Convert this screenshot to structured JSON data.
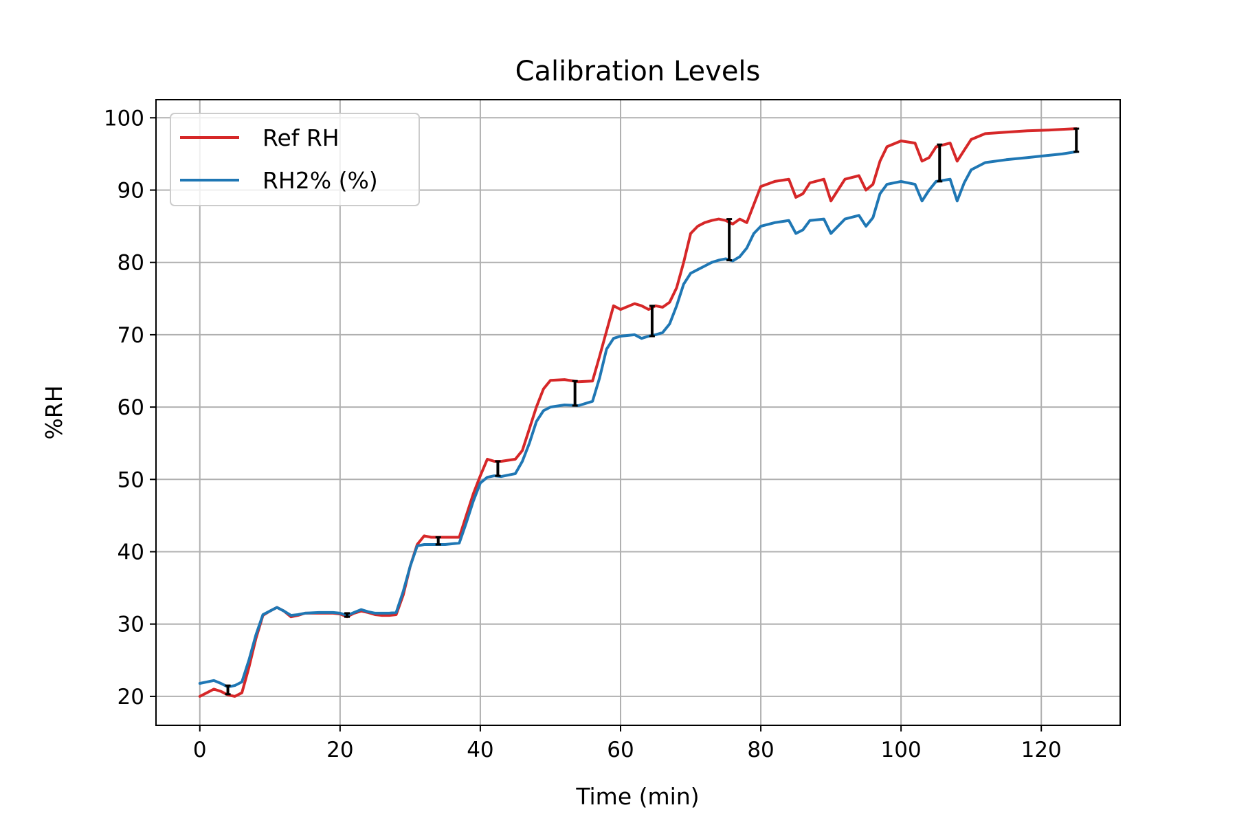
{
  "chart_data": {
    "type": "line",
    "title": "Calibration Levels",
    "xlabel": "Time (min)",
    "ylabel": "%RH",
    "xlim": [
      -6.25,
      131.25
    ],
    "ylim": [
      16,
      102.5
    ],
    "xticks": [
      0,
      20,
      40,
      60,
      80,
      100,
      120
    ],
    "yticks": [
      20,
      30,
      40,
      50,
      60,
      70,
      80,
      90,
      100
    ],
    "grid": true,
    "legend": {
      "placement": "upper-left"
    },
    "series": [
      {
        "name": "Ref RH",
        "color": "#d62728",
        "points": [
          [
            0,
            20.0
          ],
          [
            1,
            20.5
          ],
          [
            2,
            21.0
          ],
          [
            3,
            20.7
          ],
          [
            4,
            20.2
          ],
          [
            5,
            20.0
          ],
          [
            6,
            20.5
          ],
          [
            7,
            24.0
          ],
          [
            8,
            28.0
          ],
          [
            9,
            31.2
          ],
          [
            10,
            31.8
          ],
          [
            11,
            32.3
          ],
          [
            12,
            31.8
          ],
          [
            13,
            31.0
          ],
          [
            14,
            31.2
          ],
          [
            15,
            31.5
          ],
          [
            17,
            31.5
          ],
          [
            19,
            31.5
          ],
          [
            20,
            31.4
          ],
          [
            21,
            31.0
          ],
          [
            22,
            31.5
          ],
          [
            23,
            31.8
          ],
          [
            24,
            31.6
          ],
          [
            25,
            31.3
          ],
          [
            26,
            31.2
          ],
          [
            27,
            31.2
          ],
          [
            28,
            31.3
          ],
          [
            29,
            34.0
          ],
          [
            30,
            38.0
          ],
          [
            31,
            41.0
          ],
          [
            32,
            42.2
          ],
          [
            33,
            42.0
          ],
          [
            35,
            42.0
          ],
          [
            37,
            42.0
          ],
          [
            38,
            45.0
          ],
          [
            39,
            48.0
          ],
          [
            40,
            50.5
          ],
          [
            41,
            52.8
          ],
          [
            42,
            52.5
          ],
          [
            43,
            52.5
          ],
          [
            45,
            52.8
          ],
          [
            46,
            54.0
          ],
          [
            47,
            57.0
          ],
          [
            48,
            60.0
          ],
          [
            49,
            62.5
          ],
          [
            50,
            63.7
          ],
          [
            52,
            63.8
          ],
          [
            54,
            63.5
          ],
          [
            56,
            63.6
          ],
          [
            57,
            67.0
          ],
          [
            58,
            70.5
          ],
          [
            59,
            74.0
          ],
          [
            60,
            73.5
          ],
          [
            62,
            74.3
          ],
          [
            63,
            74.0
          ],
          [
            64,
            73.5
          ],
          [
            65,
            74.0
          ],
          [
            66,
            73.8
          ],
          [
            67,
            74.5
          ],
          [
            68,
            76.5
          ],
          [
            69,
            80.0
          ],
          [
            70,
            84.0
          ],
          [
            71,
            85.0
          ],
          [
            72,
            85.5
          ],
          [
            73,
            85.8
          ],
          [
            74,
            86.0
          ],
          [
            75,
            85.8
          ],
          [
            76,
            85.3
          ],
          [
            77,
            86.0
          ],
          [
            78,
            85.5
          ],
          [
            79,
            88.0
          ],
          [
            80,
            90.5
          ],
          [
            82,
            91.2
          ],
          [
            84,
            91.5
          ],
          [
            85,
            89.0
          ],
          [
            86,
            89.5
          ],
          [
            87,
            91.0
          ],
          [
            89,
            91.5
          ],
          [
            90,
            88.5
          ],
          [
            91,
            90.0
          ],
          [
            92,
            91.5
          ],
          [
            94,
            92.0
          ],
          [
            95,
            90.0
          ],
          [
            96,
            90.8
          ],
          [
            97,
            94.0
          ],
          [
            98,
            96.0
          ],
          [
            100,
            96.8
          ],
          [
            102,
            96.5
          ],
          [
            103,
            94.0
          ],
          [
            104,
            94.5
          ],
          [
            105,
            96.0
          ],
          [
            107,
            96.5
          ],
          [
            108,
            94.0
          ],
          [
            109,
            95.5
          ],
          [
            110,
            97.0
          ],
          [
            112,
            97.8
          ],
          [
            115,
            98.0
          ],
          [
            118,
            98.2
          ],
          [
            121,
            98.3
          ],
          [
            123,
            98.4
          ],
          [
            125,
            98.5
          ]
        ]
      },
      {
        "name": "RH2% (%)",
        "color": "#1f77b4",
        "points": [
          [
            0,
            21.8
          ],
          [
            1,
            22.0
          ],
          [
            2,
            22.2
          ],
          [
            3,
            21.8
          ],
          [
            4,
            21.3
          ],
          [
            5,
            21.5
          ],
          [
            6,
            22.0
          ],
          [
            7,
            25.0
          ],
          [
            8,
            28.5
          ],
          [
            9,
            31.3
          ],
          [
            10,
            31.8
          ],
          [
            11,
            32.3
          ],
          [
            12,
            31.8
          ],
          [
            13,
            31.2
          ],
          [
            14,
            31.3
          ],
          [
            15,
            31.5
          ],
          [
            17,
            31.6
          ],
          [
            19,
            31.6
          ],
          [
            20,
            31.5
          ],
          [
            21,
            31.2
          ],
          [
            22,
            31.6
          ],
          [
            23,
            32.0
          ],
          [
            24,
            31.7
          ],
          [
            25,
            31.5
          ],
          [
            26,
            31.5
          ],
          [
            27,
            31.5
          ],
          [
            28,
            31.6
          ],
          [
            29,
            34.5
          ],
          [
            30,
            38.0
          ],
          [
            31,
            40.8
          ],
          [
            32,
            41.0
          ],
          [
            33,
            41.0
          ],
          [
            35,
            41.0
          ],
          [
            37,
            41.2
          ],
          [
            38,
            44.0
          ],
          [
            39,
            47.0
          ],
          [
            40,
            49.5
          ],
          [
            41,
            50.3
          ],
          [
            42,
            50.5
          ],
          [
            43,
            50.4
          ],
          [
            45,
            50.8
          ],
          [
            46,
            52.5
          ],
          [
            47,
            55.0
          ],
          [
            48,
            58.0
          ],
          [
            49,
            59.5
          ],
          [
            50,
            60.0
          ],
          [
            52,
            60.3
          ],
          [
            54,
            60.2
          ],
          [
            56,
            60.8
          ],
          [
            57,
            64.0
          ],
          [
            58,
            68.0
          ],
          [
            59,
            69.5
          ],
          [
            60,
            69.8
          ],
          [
            62,
            70.0
          ],
          [
            63,
            69.5
          ],
          [
            64,
            69.8
          ],
          [
            65,
            70.0
          ],
          [
            66,
            70.3
          ],
          [
            67,
            71.5
          ],
          [
            68,
            74.0
          ],
          [
            69,
            77.0
          ],
          [
            70,
            78.5
          ],
          [
            71,
            79.0
          ],
          [
            72,
            79.5
          ],
          [
            73,
            80.0
          ],
          [
            74,
            80.3
          ],
          [
            75,
            80.5
          ],
          [
            76,
            80.2
          ],
          [
            77,
            80.8
          ],
          [
            78,
            82.0
          ],
          [
            79,
            84.0
          ],
          [
            80,
            85.0
          ],
          [
            82,
            85.5
          ],
          [
            84,
            85.8
          ],
          [
            85,
            84.0
          ],
          [
            86,
            84.5
          ],
          [
            87,
            85.8
          ],
          [
            89,
            86.0
          ],
          [
            90,
            84.0
          ],
          [
            91,
            85.0
          ],
          [
            92,
            86.0
          ],
          [
            94,
            86.5
          ],
          [
            95,
            85.0
          ],
          [
            96,
            86.2
          ],
          [
            97,
            89.5
          ],
          [
            98,
            90.8
          ],
          [
            100,
            91.2
          ],
          [
            102,
            90.8
          ],
          [
            103,
            88.5
          ],
          [
            104,
            90.0
          ],
          [
            105,
            91.2
          ],
          [
            107,
            91.5
          ],
          [
            108,
            88.5
          ],
          [
            109,
            91.0
          ],
          [
            110,
            92.8
          ],
          [
            112,
            93.8
          ],
          [
            115,
            94.2
          ],
          [
            118,
            94.5
          ],
          [
            121,
            94.8
          ],
          [
            123,
            95.0
          ],
          [
            125,
            95.3
          ]
        ]
      }
    ],
    "difference_markers": [
      {
        "x": 4.0,
        "y_low": 20.3,
        "y_high": 21.5
      },
      {
        "x": 21.0,
        "y_low": 31.0,
        "y_high": 31.5
      },
      {
        "x": 34.0,
        "y_low": 41.0,
        "y_high": 42.0
      },
      {
        "x": 42.5,
        "y_low": 50.5,
        "y_high": 52.5
      },
      {
        "x": 53.5,
        "y_low": 60.2,
        "y_high": 63.6
      },
      {
        "x": 64.5,
        "y_low": 69.8,
        "y_high": 74.0
      },
      {
        "x": 75.5,
        "y_low": 80.3,
        "y_high": 86.0
      },
      {
        "x": 105.5,
        "y_low": 91.2,
        "y_high": 96.3
      },
      {
        "x": 125.0,
        "y_low": 95.3,
        "y_high": 98.5
      }
    ]
  }
}
